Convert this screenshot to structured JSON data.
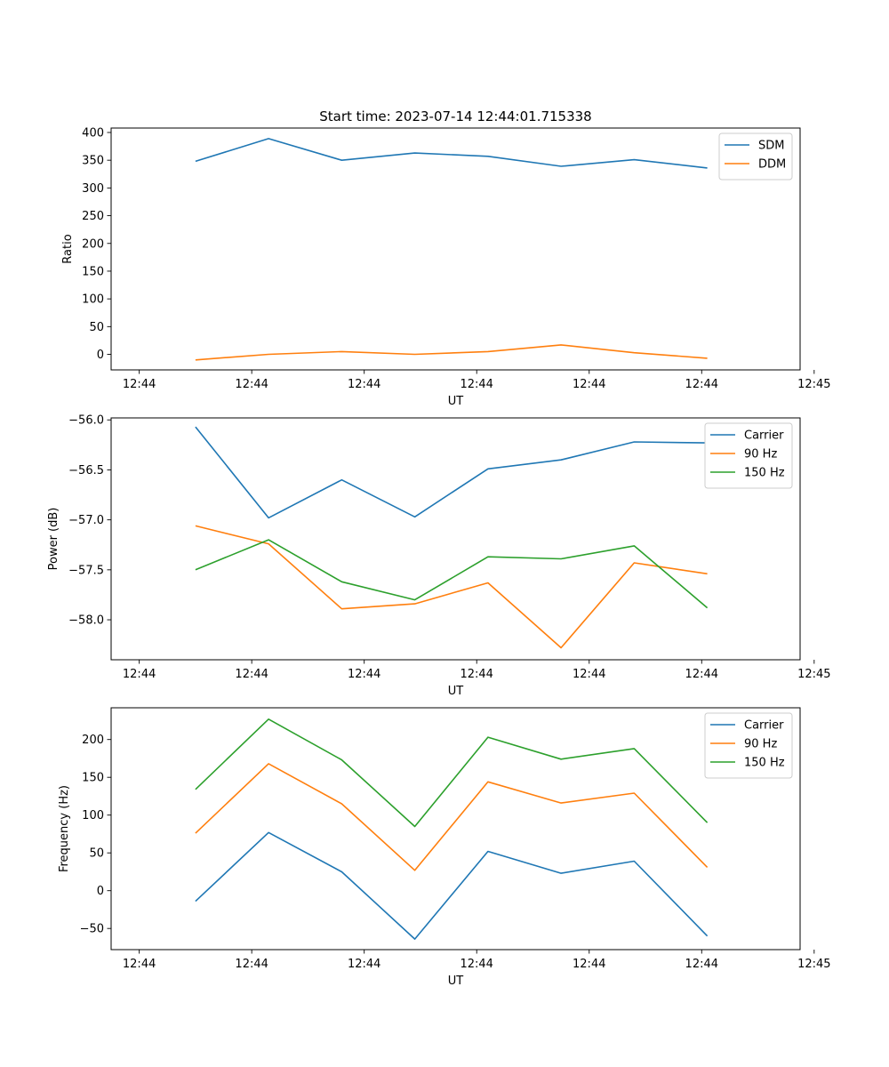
{
  "figure_title": "Start time: 2023-07-14 12:44:01.715338",
  "colors": {
    "blue": "#1f77b4",
    "orange": "#ff7f0e",
    "green": "#2ca02c",
    "axis": "#000000",
    "legend_border": "#cccccc"
  },
  "chart_data": [
    {
      "type": "line",
      "title": "Start time: 2023-07-14 12:44:01.715338",
      "xlabel": "UT",
      "ylabel": "Ratio",
      "xlim": [
        -0.2,
        4.7
      ],
      "ylim": [
        -28,
        408
      ],
      "x_ticks": [
        0,
        0.8,
        1.6,
        2.4,
        3.2,
        4.0,
        4.8
      ],
      "x_tick_labels": [
        "12:44",
        "12:44",
        "12:44",
        "12:44",
        "12:44",
        "12:44",
        "12:45"
      ],
      "y_ticks": [
        0,
        50,
        100,
        150,
        200,
        250,
        300,
        350,
        400
      ],
      "y_tick_labels": [
        "0",
        "50",
        "100",
        "150",
        "200",
        "250",
        "300",
        "350",
        "400"
      ],
      "legend_loc": "upper right",
      "x": [
        0.4,
        0.92,
        1.44,
        1.96,
        2.48,
        3.0,
        3.52,
        4.04
      ],
      "series": [
        {
          "name": "SDM",
          "color": "#1f77b4",
          "values": [
            348,
            389,
            350,
            363,
            357,
            339,
            351,
            336
          ]
        },
        {
          "name": "DDM",
          "color": "#ff7f0e",
          "values": [
            -10,
            0,
            5,
            0,
            5,
            17,
            3,
            -7
          ]
        }
      ]
    },
    {
      "type": "line",
      "title": "",
      "xlabel": "UT",
      "ylabel": "Power (dB)",
      "xlim": [
        -0.2,
        4.7
      ],
      "ylim": [
        -58.4,
        -55.98
      ],
      "x_ticks": [
        0,
        0.8,
        1.6,
        2.4,
        3.2,
        4.0,
        4.8
      ],
      "x_tick_labels": [
        "12:44",
        "12:44",
        "12:44",
        "12:44",
        "12:44",
        "12:44",
        "12:45"
      ],
      "y_ticks": [
        -58.0,
        -57.5,
        -57.0,
        -56.5,
        -56.0
      ],
      "y_tick_labels": [
        "−58.0",
        "−57.5",
        "−57.0",
        "−56.5",
        "−56.0"
      ],
      "legend_loc": "upper right",
      "x": [
        0.4,
        0.92,
        1.44,
        1.96,
        2.48,
        3.0,
        3.52,
        4.04
      ],
      "series": [
        {
          "name": "Carrier",
          "color": "#1f77b4",
          "values": [
            -56.07,
            -56.98,
            -56.6,
            -56.97,
            -56.49,
            -56.4,
            -56.22,
            -56.23
          ]
        },
        {
          "name": "90 Hz",
          "color": "#ff7f0e",
          "values": [
            -57.06,
            -57.24,
            -57.89,
            -57.84,
            -57.63,
            -58.28,
            -57.43,
            -57.54
          ]
        },
        {
          "name": "150 Hz",
          "color": "#2ca02c",
          "values": [
            -57.5,
            -57.2,
            -57.62,
            -57.8,
            -57.37,
            -57.39,
            -57.26,
            -57.88
          ]
        }
      ]
    },
    {
      "type": "line",
      "title": "",
      "xlabel": "UT",
      "ylabel": "Frequency (Hz)",
      "xlim": [
        -0.2,
        4.7
      ],
      "ylim": [
        -78,
        242
      ],
      "x_ticks": [
        0,
        0.8,
        1.6,
        2.4,
        3.2,
        4.0,
        4.8
      ],
      "x_tick_labels": [
        "12:44",
        "12:44",
        "12:44",
        "12:44",
        "12:44",
        "12:44",
        "12:45"
      ],
      "y_ticks": [
        -50,
        0,
        50,
        100,
        150,
        200
      ],
      "y_tick_labels": [
        "−50",
        "0",
        "50",
        "100",
        "150",
        "200"
      ],
      "legend_loc": "upper right",
      "x": [
        0.4,
        0.92,
        1.44,
        1.96,
        2.48,
        3.0,
        3.52,
        4.04
      ],
      "series": [
        {
          "name": "Carrier",
          "color": "#1f77b4",
          "values": [
            -14,
            77,
            25,
            -64,
            52,
            23,
            39,
            -60
          ]
        },
        {
          "name": "90 Hz",
          "color": "#ff7f0e",
          "values": [
            76,
            168,
            115,
            27,
            144,
            116,
            129,
            31
          ]
        },
        {
          "name": "150 Hz",
          "color": "#2ca02c",
          "values": [
            134,
            227,
            173,
            85,
            203,
            174,
            188,
            90
          ]
        }
      ]
    }
  ]
}
